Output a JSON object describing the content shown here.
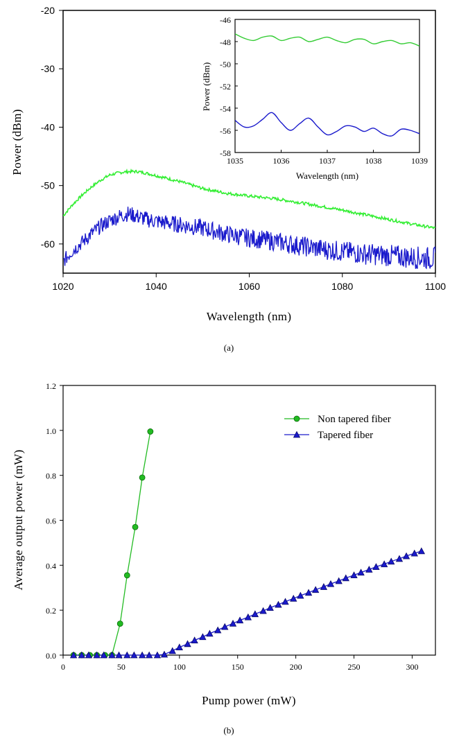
{
  "chart_data": [
    {
      "type": "line",
      "panel": "a",
      "caption": "(a)",
      "xlabel": "Wavelength (nm)",
      "ylabel": "Power (dBm)",
      "xlim": [
        1020,
        1100
      ],
      "ylim": [
        -65,
        -20
      ],
      "x_ticks": [
        "1020",
        "1040",
        "1060",
        "1080",
        "1100"
      ],
      "y_ticks": [
        "-20",
        "-30",
        "-40",
        "-50",
        "-60"
      ],
      "colors": {
        "upper": "#33ee33",
        "lower": "#1a1acc"
      },
      "series": [
        {
          "x": [
            1020,
            1022,
            1024,
            1026,
            1028,
            1030,
            1032,
            1034,
            1036,
            1038,
            1040,
            1045,
            1050,
            1055,
            1060,
            1065,
            1070,
            1075,
            1080,
            1085,
            1090,
            1095,
            1100
          ],
          "y": [
            -55.2,
            -53.3,
            -51.7,
            -50.3,
            -49.1,
            -48.2,
            -47.8,
            -47.6,
            -47.6,
            -47.9,
            -48.3,
            -49.3,
            -50.5,
            -51.3,
            -51.8,
            -52.2,
            -52.8,
            -53.5,
            -54.2,
            -55.0,
            -55.8,
            -56.6,
            -57.3
          ]
        },
        {
          "x": [
            1020,
            1022,
            1024,
            1026,
            1028,
            1030,
            1032,
            1034,
            1036,
            1038,
            1040,
            1045,
            1050,
            1055,
            1060,
            1065,
            1070,
            1075,
            1080,
            1085,
            1090,
            1095,
            1100
          ],
          "y": [
            -63.0,
            -61.2,
            -59.8,
            -58.3,
            -57.0,
            -56.0,
            -55.3,
            -54.8,
            -55.3,
            -55.8,
            -56.1,
            -56.7,
            -57.3,
            -58.3,
            -59.0,
            -59.5,
            -60.2,
            -60.8,
            -61.3,
            -61.7,
            -62.0,
            -62.3,
            -62.5
          ],
          "noise": 2.0
        }
      ]
    },
    {
      "type": "line",
      "panel": "a-inset",
      "xlabel": "Wavelength (nm)",
      "ylabel": "Power (dBm)",
      "xlim": [
        1035,
        1039
      ],
      "ylim": [
        -58,
        -46
      ],
      "x_ticks": [
        "1035",
        "1036",
        "1037",
        "1038",
        "1039"
      ],
      "y_ticks": [
        "-46",
        "-48",
        "-50",
        "-52",
        "-54",
        "-56",
        "-58"
      ],
      "colors": {
        "upper": "#33cc33",
        "lower": "#1a1acc"
      },
      "series": [
        {
          "x": [
            1035.0,
            1035.2,
            1035.4,
            1035.6,
            1035.8,
            1036.0,
            1036.2,
            1036.4,
            1036.6,
            1036.8,
            1037.0,
            1037.2,
            1037.4,
            1037.6,
            1037.8,
            1038.0,
            1038.2,
            1038.4,
            1038.6,
            1038.8,
            1039.0
          ],
          "y": [
            -47.3,
            -47.7,
            -47.9,
            -47.6,
            -47.5,
            -47.9,
            -47.7,
            -47.6,
            -48.0,
            -47.8,
            -47.6,
            -47.9,
            -48.1,
            -47.8,
            -47.8,
            -48.2,
            -48.0,
            -47.9,
            -48.2,
            -48.1,
            -48.4
          ]
        },
        {
          "x": [
            1035.0,
            1035.2,
            1035.4,
            1035.6,
            1035.8,
            1036.0,
            1036.2,
            1036.4,
            1036.6,
            1036.8,
            1037.0,
            1037.2,
            1037.4,
            1037.6,
            1037.8,
            1038.0,
            1038.2,
            1038.4,
            1038.6,
            1038.8,
            1039.0
          ],
          "y": [
            -55.1,
            -55.7,
            -55.6,
            -55.0,
            -54.4,
            -55.3,
            -56.0,
            -55.4,
            -54.9,
            -55.7,
            -56.4,
            -56.1,
            -55.6,
            -55.7,
            -56.1,
            -55.8,
            -56.3,
            -56.5,
            -55.9,
            -56.0,
            -56.3
          ]
        }
      ]
    },
    {
      "type": "line",
      "panel": "b",
      "caption": "(b)",
      "xlabel": "Pump power (mW)",
      "ylabel": "Average output power (mW)",
      "xlim": [
        0,
        320
      ],
      "ylim": [
        0,
        1.2
      ],
      "x_ticks": [
        "0",
        "50",
        "100",
        "150",
        "200",
        "250",
        "300"
      ],
      "y_ticks": [
        "0.0",
        "0.2",
        "0.4",
        "0.6",
        "0.8",
        "1.0",
        "1.2"
      ],
      "legend": "top-right",
      "series": [
        {
          "name": "Non tapered fiber",
          "marker": "circle",
          "color": "#22bb22",
          "x": [
            9,
            16,
            23,
            29,
            36,
            42,
            49,
            55,
            62,
            68,
            75
          ],
          "y": [
            0.0,
            0.0,
            0.0,
            0.0,
            0.0,
            0.0,
            0.14,
            0.355,
            0.57,
            0.79,
            0.995
          ]
        },
        {
          "name": "Tapered fiber",
          "marker": "triangle",
          "color": "#1a1acc",
          "x": [
            9,
            16,
            22,
            29,
            35,
            42,
            48,
            55,
            61,
            68,
            74,
            81,
            87,
            94,
            100,
            107,
            113,
            120,
            126,
            133,
            139,
            146,
            152,
            159,
            165,
            172,
            178,
            185,
            191,
            198,
            204,
            211,
            217,
            224,
            230,
            237,
            243,
            250,
            256,
            263,
            269,
            276,
            282,
            289,
            295,
            302,
            308
          ],
          "y": [
            0.0,
            0.0,
            0.0,
            0.0,
            0.0,
            0.0,
            0.0,
            0.0,
            0.0,
            0.0,
            0.0,
            0.0,
            0.003,
            0.019,
            0.035,
            0.05,
            0.066,
            0.081,
            0.096,
            0.111,
            0.126,
            0.141,
            0.155,
            0.169,
            0.183,
            0.197,
            0.211,
            0.225,
            0.238,
            0.252,
            0.265,
            0.278,
            0.291,
            0.304,
            0.317,
            0.33,
            0.343,
            0.356,
            0.368,
            0.381,
            0.393,
            0.405,
            0.417,
            0.429,
            0.441,
            0.453,
            0.463
          ]
        }
      ]
    }
  ]
}
